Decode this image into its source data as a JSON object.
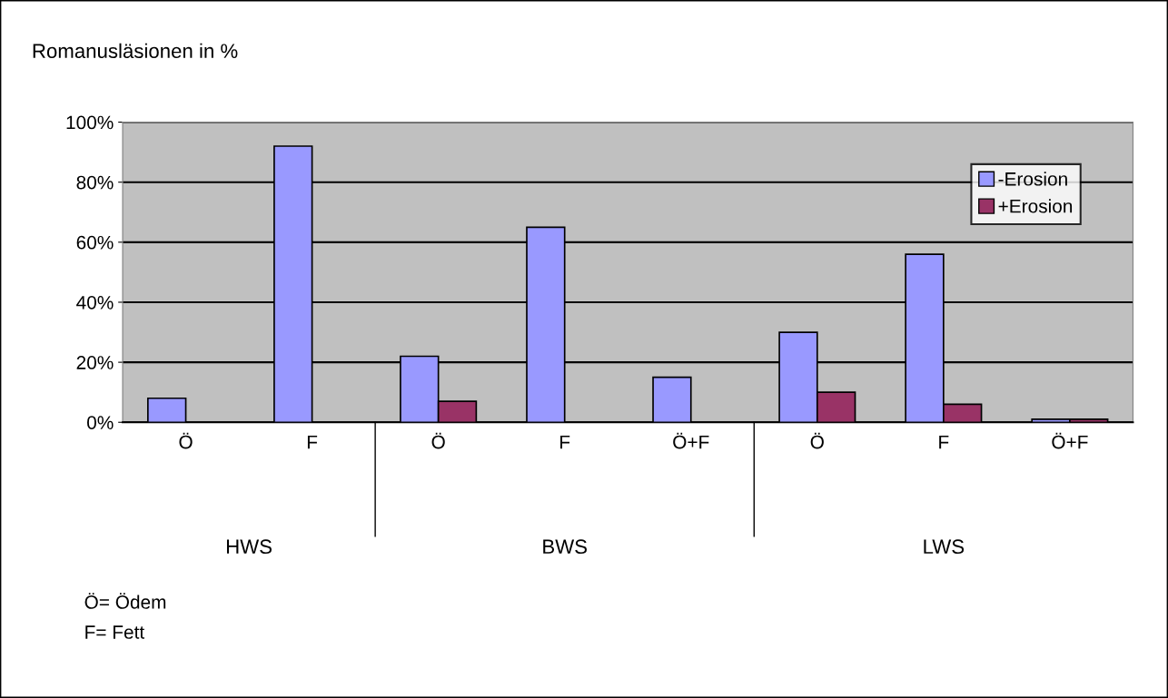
{
  "chart_data": {
    "type": "bar",
    "ylabel": "Romanusläsionen in %",
    "categories": [
      "Ö",
      "F",
      "Ö",
      "F",
      "Ö+F",
      "Ö",
      "F",
      "Ö+F"
    ],
    "series": [
      {
        "name": "-Erosion",
        "color": "#9999ff",
        "values": [
          8,
          92,
          22,
          65,
          15,
          30,
          56,
          1
        ]
      },
      {
        "name": "+Erosion",
        "color": "#993366",
        "values": [
          null,
          null,
          7,
          null,
          null,
          10,
          6,
          1
        ]
      }
    ],
    "ylim": [
      0,
      100
    ],
    "yticks": [
      {
        "value": 0,
        "label": "0%"
      },
      {
        "value": 20,
        "label": "20%"
      },
      {
        "value": 40,
        "label": "40%"
      },
      {
        "value": 60,
        "label": "60%"
      },
      {
        "value": 80,
        "label": "80%"
      },
      {
        "value": 100,
        "label": "100%"
      }
    ],
    "grid": "y",
    "legend": "top right",
    "annotations": [
      "HWS",
      "BWS",
      "LWS",
      "Ö= Ödem",
      "F= Fett"
    ]
  }
}
